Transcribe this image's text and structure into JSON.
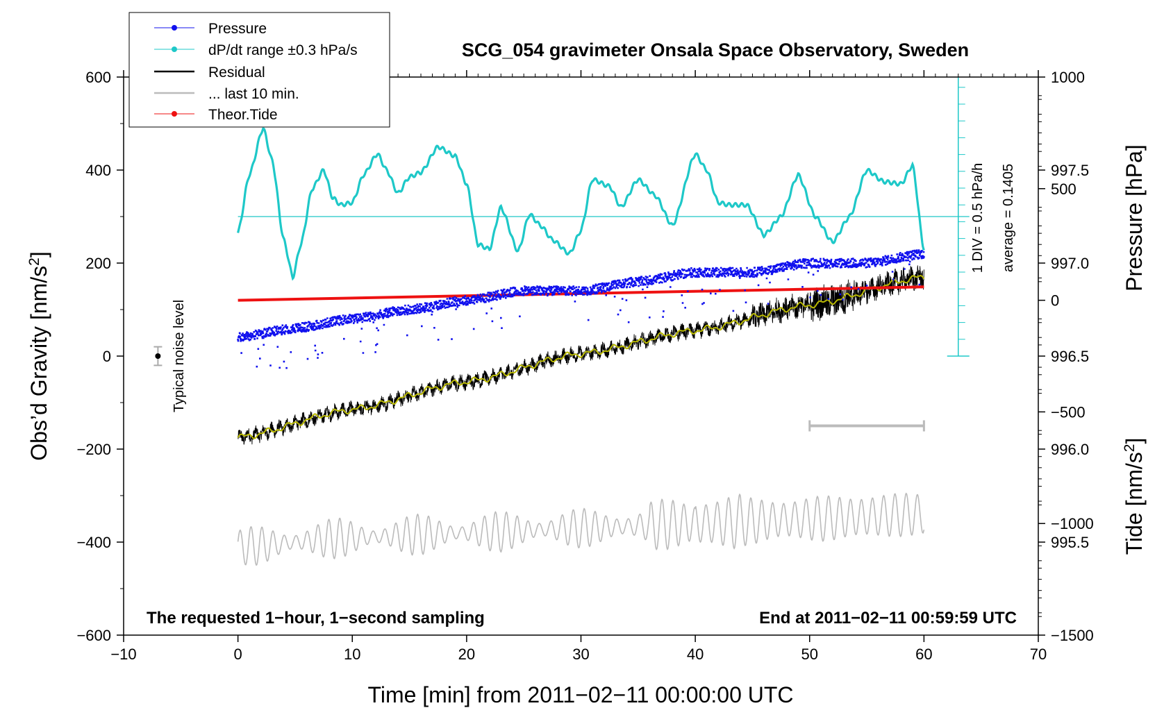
{
  "chart_data": {
    "type": "line",
    "title": "SCG_054 gravimeter Onsala Space Observatory, Sweden",
    "xlabel": "Time [min] from 2011−02−11 00:00:00 UTC",
    "ylabel_left": "Obs’d Gravity [nm/s",
    "ylabel_left_sup": "2",
    "ylabel_left_close": "]",
    "ylabel_right_pressure": "Pressure [hPa]",
    "ylabel_right_tide": "Tide [nm/s",
    "ylabel_right_tide_sup": "2",
    "ylabel_right_tide_close": "]",
    "xlim": [
      -10,
      70
    ],
    "ylim_gravity": [
      -600,
      600
    ],
    "ylim_pressure": [
      995.0,
      998.0
    ],
    "ylim_tide": [
      -1500,
      1000
    ],
    "x_ticks": [
      "−10",
      "0",
      "10",
      "20",
      "30",
      "40",
      "50",
      "60",
      "70"
    ],
    "gravity_ticks": [
      "−600",
      "−400",
      "−200",
      "0",
      "200",
      "400",
      "600"
    ],
    "pressure_ticks": [
      "995.5",
      "996.0",
      "996.5",
      "997.0",
      "997.5"
    ],
    "tide_ticks": [
      "−1500",
      "−1000",
      "−500",
      "0",
      "500",
      "1000"
    ],
    "legend": [
      "Pressure",
      "dP/dt range ±0.3 hPa/s",
      "Residual",
      "... last 10 min.",
      "Theor.Tide"
    ],
    "colors": {
      "pressure": "#1010ee",
      "dpdt": "#1ec8c8",
      "residual": "#000000",
      "smoothed": "#b8b800",
      "last10": "#bbbbbb",
      "tide": "#ee1111"
    },
    "annotations": {
      "bottom_left": "The requested 1−hour, 1−second sampling",
      "bottom_right": "End at 2011−02−11 00:59:59 UTC",
      "noise": "Typical noise level",
      "div": "1 DIV = 0.5 hPa/h",
      "average": "average = 0.1405"
    },
    "series": [
      {
        "name": "Pressure",
        "axis": "pressure",
        "x": [
          0,
          5,
          10,
          15,
          20,
          25,
          30,
          35,
          40,
          45,
          50,
          55,
          60
        ],
        "values": [
          996.6,
          996.65,
          996.7,
          996.75,
          996.8,
          996.85,
          996.85,
          996.9,
          996.95,
          996.95,
          997.0,
          997.0,
          997.05
        ]
      },
      {
        "name": "dP/dt range ±0.3 hPa/s",
        "axis": "gravity",
        "x": [
          0,
          1,
          2.2,
          3,
          4,
          4.8,
          5.5,
          6.5,
          7.5,
          8.3,
          9,
          10,
          11,
          12.2,
          13,
          14,
          15,
          16,
          17.5,
          19,
          20,
          21,
          22,
          23,
          24.5,
          25.5,
          26.5,
          27.5,
          29,
          30,
          31,
          32.5,
          33.5,
          35,
          36.5,
          38,
          40,
          41,
          42,
          43,
          44.5,
          46,
          47.5,
          49,
          50.5,
          52,
          53.5,
          55,
          56.5,
          58,
          59,
          60
        ],
        "values": [
          265,
          390,
          490,
          420,
          250,
          170,
          240,
          360,
          400,
          340,
          325,
          330,
          390,
          435,
          400,
          350,
          385,
          395,
          450,
          430,
          370,
          240,
          230,
          320,
          225,
          305,
          280,
          250,
          220,
          270,
          380,
          365,
          320,
          380,
          345,
          280,
          435,
          400,
          330,
          325,
          325,
          260,
          300,
          390,
          300,
          245,
          300,
          400,
          375,
          370,
          410,
          230
        ]
      },
      {
        "name": "Residual",
        "axis": "gravity",
        "x": [
          0,
          10,
          20,
          30,
          40,
          50,
          60
        ],
        "values": [
          -175,
          -115,
          -55,
          5,
          55,
          110,
          170
        ]
      },
      {
        "name": "... last 10 min.",
        "axis": "gravity",
        "x": [
          0,
          10,
          20,
          30,
          40,
          50,
          60
        ],
        "values": [
          -410,
          -390,
          -380,
          -370,
          -360,
          -350,
          -340
        ]
      },
      {
        "name": "Theor.Tide",
        "axis": "tide",
        "x": [
          0,
          60
        ],
        "values": [
          0,
          60
        ]
      }
    ],
    "noise_level": {
      "x": -7,
      "value": 0,
      "error": 20
    },
    "last10_range": {
      "x": [
        50,
        60
      ],
      "value": -150
    },
    "dpdt_zero_line": 300
  }
}
